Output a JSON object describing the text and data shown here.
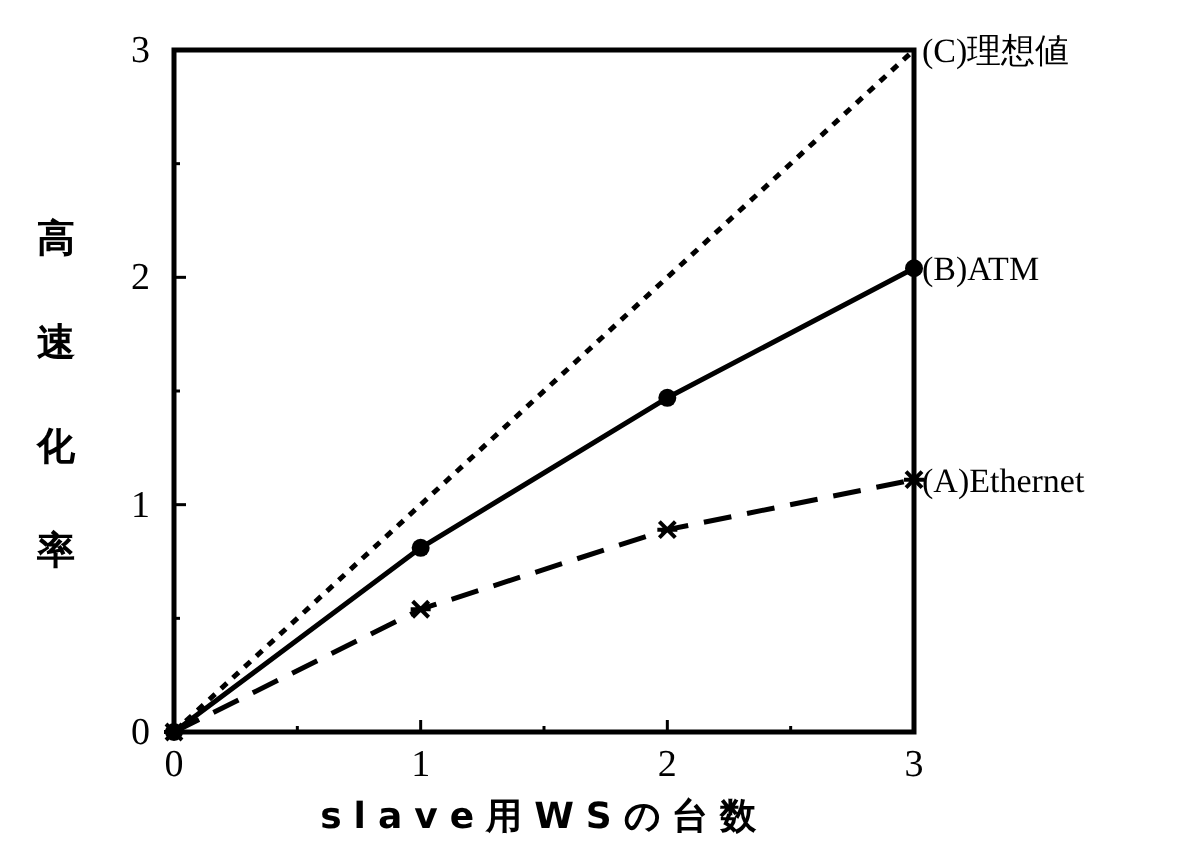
{
  "chart_data": {
    "type": "line",
    "xlabel": "slave用WSの台数",
    "ylabel": "高速化率",
    "x": [
      0,
      1,
      2,
      3
    ],
    "series": [
      {
        "name": "(A)Ethernet",
        "color": "#000000",
        "values": [
          0,
          0.54,
          0.89,
          1.11
        ],
        "marker": "cross",
        "line_style": "dashed"
      },
      {
        "name": "(B)ATM",
        "color": "#000000",
        "values": [
          0,
          0.81,
          1.47,
          2.04
        ],
        "marker": "circle",
        "line_style": "solid"
      },
      {
        "name": "(C)理想値",
        "color": "#000000",
        "values": [
          0,
          1,
          2,
          3
        ],
        "marker": "none",
        "line_style": "dotted"
      }
    ],
    "xlim": [
      0,
      3
    ],
    "ylim": [
      0,
      3
    ],
    "xticks": [
      0,
      {
        "value": 0.5,
        "label": null
      },
      1,
      {
        "value": 1.5,
        "label": null
      },
      2,
      {
        "value": 2.5,
        "label": null
      },
      3
    ],
    "yticks": [
      0,
      {
        "value": 0.5,
        "label": null
      },
      1,
      {
        "value": 1.5,
        "label": null
      },
      2,
      {
        "value": 2.5,
        "label": null
      },
      3
    ],
    "grid": false
  }
}
